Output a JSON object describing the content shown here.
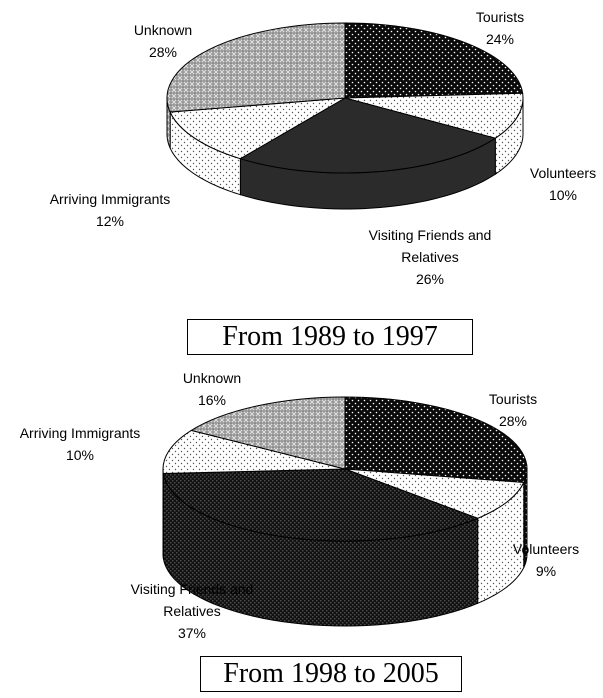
{
  "chart_data": [
    {
      "type": "pie",
      "title": "From 1989 to 1997",
      "slices": [
        {
          "label": "Tourists",
          "pct_label": "24%",
          "value": 24,
          "pattern": "dots-dark"
        },
        {
          "label": "Volunteers",
          "pct_label": "10%",
          "value": 10,
          "pattern": "dots-sparse"
        },
        {
          "label": "Visiting Friends and Relatives",
          "label_lines": [
            "Visiting Friends and",
            "Relatives"
          ],
          "pct_label": "26%",
          "value": 26,
          "pattern": "solid-dark"
        },
        {
          "label": "Arriving Immigrants",
          "pct_label": "12%",
          "value": 12,
          "pattern": "dots-sparse"
        },
        {
          "label": "Unknown",
          "pct_label": "28%",
          "value": 28,
          "pattern": "cross-grey"
        }
      ]
    },
    {
      "type": "pie",
      "title": "From 1998 to 2005",
      "slices": [
        {
          "label": "Tourists",
          "pct_label": "28%",
          "value": 28,
          "pattern": "dots-dark"
        },
        {
          "label": "Volunteers",
          "pct_label": "9%",
          "value": 9,
          "pattern": "dots-sparse"
        },
        {
          "label": "Visiting Friends and Relatives",
          "label_lines": [
            "Visiting Friends and",
            "Relatives"
          ],
          "pct_label": "37%",
          "value": 37,
          "pattern": "checker-dark"
        },
        {
          "label": "Arriving Immigrants",
          "pct_label": "10%",
          "value": 10,
          "pattern": "dots-sparse"
        },
        {
          "label": "Unknown",
          "pct_label": "16%",
          "value": 16,
          "pattern": "cross-grey"
        }
      ]
    }
  ]
}
